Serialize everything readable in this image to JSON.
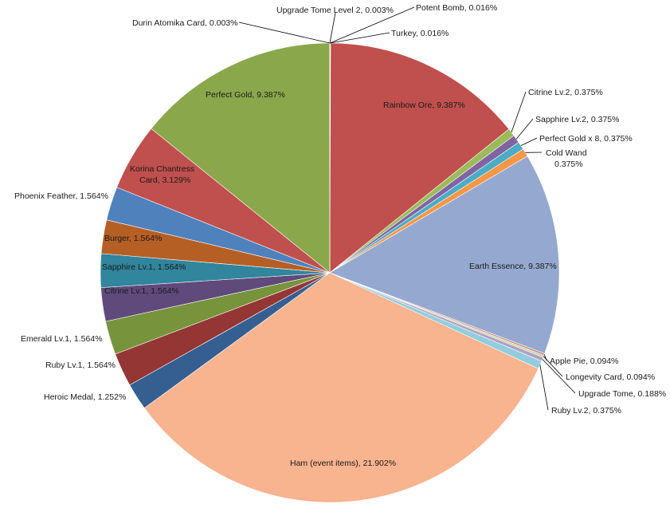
{
  "chart_data": {
    "type": "pie",
    "slices": [
      {
        "label": "Upgrade Tome Level 2, 0.003%",
        "value": 0.003,
        "color": "#a0a0a0"
      },
      {
        "label": "Potent Bomb, 0.016%",
        "value": 0.016,
        "color": "#8e8e8e"
      },
      {
        "label": "Turkey, 0.016%",
        "value": 0.016,
        "color": "#b9b9b9"
      },
      {
        "label": "Rainbow Ore, 9.387%",
        "value": 9.387,
        "color": "#c0504d"
      },
      {
        "label": "Citrine Lv.2, 0.375%",
        "value": 0.375,
        "color": "#9bbb59"
      },
      {
        "label": "Sapphire Lv.2, 0.375%",
        "value": 0.375,
        "color": "#8064a2"
      },
      {
        "label": "Perfect Gold x 8, 0.375%",
        "value": 0.375,
        "color": "#4bacc6"
      },
      {
        "label": "Cold Wand 0.375%",
        "value": 0.375,
        "color": "#f79646"
      },
      {
        "label": "Earth Essence, 9.387%",
        "value": 9.387,
        "color": "#95a9d0"
      },
      {
        "label": "Apple Pie, 0.094%",
        "value": 0.094,
        "color": "#d08e8c"
      },
      {
        "label": "Longevity Card, 0.094%",
        "value": 0.094,
        "color": "#c4d79b"
      },
      {
        "label": "Upgrade Tome, 0.188%",
        "value": 0.188,
        "color": "#b1a0c7"
      },
      {
        "label": "Ruby Lv.2, 0.375%",
        "value": 0.375,
        "color": "#92cddc"
      },
      {
        "label": "Ham (event items), 21.902%",
        "value": 21.902,
        "color": "#f8b38f"
      },
      {
        "label": "Heroic Medal, 1.252%",
        "value": 1.252,
        "color": "#365f91"
      },
      {
        "label": "Ruby Lv.1, 1.564%",
        "value": 1.564,
        "color": "#943634"
      },
      {
        "label": "Emerald Lv.1, 1.564%",
        "value": 1.564,
        "color": "#77933c"
      },
      {
        "label": "Citrine Lv.1, 1.564%",
        "value": 1.564,
        "color": "#604a7b"
      },
      {
        "label": "Sapphire Lv.1, 1.564%",
        "value": 1.564,
        "color": "#31859c"
      },
      {
        "label": "Burger, 1.564%",
        "value": 1.564,
        "color": "#b65f24"
      },
      {
        "label": "Phoenix Feather, 1.564%",
        "value": 1.564,
        "color": "#4f81bd"
      },
      {
        "label": "Korina Chantress Card, 3.129%",
        "value": 3.129,
        "color": "#c0504d"
      },
      {
        "label": "Perfect Gold, 9.387%",
        "value": 9.387,
        "color": "#8aa84b"
      },
      {
        "label": "Durin Atomika Card, 0.003%",
        "value": 0.003,
        "color": "#707070"
      }
    ]
  }
}
